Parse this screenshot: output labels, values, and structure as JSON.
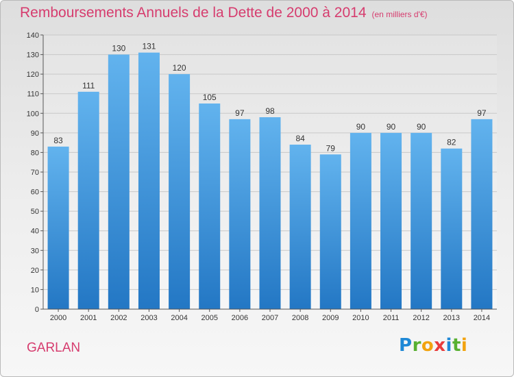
{
  "header": {
    "title": "Remboursements Annuels de la Dette de 2000 à 2014",
    "unit": "(en milliers d'€)"
  },
  "footer": {
    "commune": "GARLAN",
    "logo": "Proxiti"
  },
  "colors": {
    "title": "#d63c6e",
    "bar_top": "#62b3ee",
    "bar_bottom": "#2377c4",
    "grid": "#c8c8c8"
  },
  "chart_data": {
    "type": "bar",
    "title": "Remboursements Annuels de la Dette de 2000 à 2014",
    "xlabel": "",
    "ylabel": "(en milliers d'€)",
    "categories": [
      "2000",
      "2001",
      "2002",
      "2003",
      "2004",
      "2005",
      "2006",
      "2007",
      "2008",
      "2009",
      "2010",
      "2011",
      "2012",
      "2013",
      "2014"
    ],
    "values": [
      83,
      111,
      130,
      131,
      120,
      105,
      97,
      98,
      84,
      79,
      90,
      90,
      90,
      82,
      97
    ],
    "ylim": [
      0,
      140
    ],
    "yticks": [
      0,
      10,
      20,
      30,
      40,
      50,
      60,
      70,
      80,
      90,
      100,
      110,
      120,
      130,
      140
    ],
    "grid": true
  }
}
